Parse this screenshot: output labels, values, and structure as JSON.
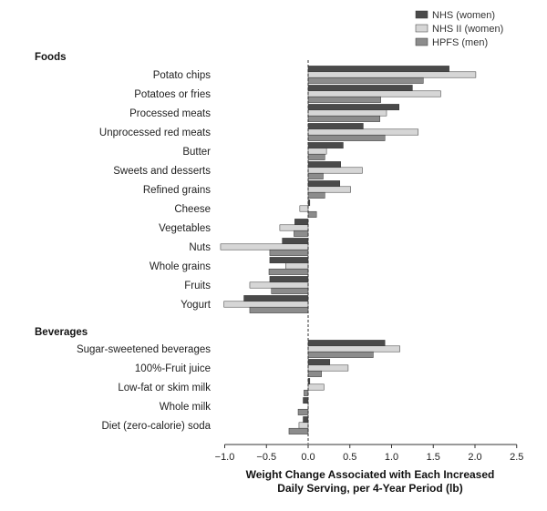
{
  "chart_data": {
    "type": "bar",
    "orientation": "horizontal",
    "xlabel": [
      "Weight Change Associated with Each Increased",
      "Daily Serving, per 4-Year Period (lb)"
    ],
    "xlim": [
      -1.0,
      2.5
    ],
    "xticks": [
      "−1.0",
      "−0.5",
      "0.0",
      "0.5",
      "1.0",
      "1.5",
      "2.0",
      "2.5"
    ],
    "xtick_values": [
      -1.0,
      -0.5,
      0.0,
      0.5,
      1.0,
      1.5,
      2.0,
      2.5
    ],
    "legend_position": "top-right",
    "colors": {
      "NHS (women)": "#4a4a4a",
      "NHS II (women)": "#d6d6d6",
      "HPFS (men)": "#8c8c8c"
    },
    "series_names": [
      "NHS (women)",
      "NHS II (women)",
      "HPFS (men)"
    ],
    "sections": [
      {
        "name": "Foods",
        "categories": [
          {
            "label": "Potato chips",
            "values": [
              1.69,
              2.01,
              1.38
            ]
          },
          {
            "label": "Potatoes or fries",
            "values": [
              1.25,
              1.59,
              0.87
            ]
          },
          {
            "label": "Processed meats",
            "values": [
              1.09,
              0.94,
              0.86
            ]
          },
          {
            "label": "Unprocessed red meats",
            "values": [
              0.66,
              1.32,
              0.92
            ]
          },
          {
            "label": "Butter",
            "values": [
              0.42,
              0.22,
              0.2
            ]
          },
          {
            "label": "Sweets and desserts",
            "values": [
              0.39,
              0.65,
              0.18
            ]
          },
          {
            "label": "Refined grains",
            "values": [
              0.38,
              0.51,
              0.2
            ]
          },
          {
            "label": "Cheese",
            "values": [
              0.02,
              -0.1,
              0.1
            ]
          },
          {
            "label": "Vegetables",
            "values": [
              -0.16,
              -0.34,
              -0.17
            ]
          },
          {
            "label": "Nuts",
            "values": [
              -0.31,
              -1.05,
              -0.46
            ]
          },
          {
            "label": "Whole grains",
            "values": [
              -0.46,
              -0.27,
              -0.47
            ]
          },
          {
            "label": "Fruits",
            "values": [
              -0.46,
              -0.7,
              -0.44
            ]
          },
          {
            "label": "Yogurt",
            "values": [
              -0.77,
              -1.01,
              -0.7
            ]
          }
        ]
      },
      {
        "name": "Beverages",
        "categories": [
          {
            "label": "Sugar-sweetened beverages",
            "values": [
              0.92,
              1.1,
              0.78
            ]
          },
          {
            "label": "100%-Fruit juice",
            "values": [
              0.26,
              0.48,
              0.16
            ]
          },
          {
            "label": "Low-fat or skim milk",
            "values": [
              0.02,
              0.19,
              -0.05
            ]
          },
          {
            "label": "Whole milk",
            "values": [
              -0.06,
              0.0,
              -0.12
            ]
          },
          {
            "label": "Diet (zero-calorie) soda",
            "values": [
              -0.06,
              -0.11,
              -0.23
            ]
          }
        ]
      }
    ]
  }
}
